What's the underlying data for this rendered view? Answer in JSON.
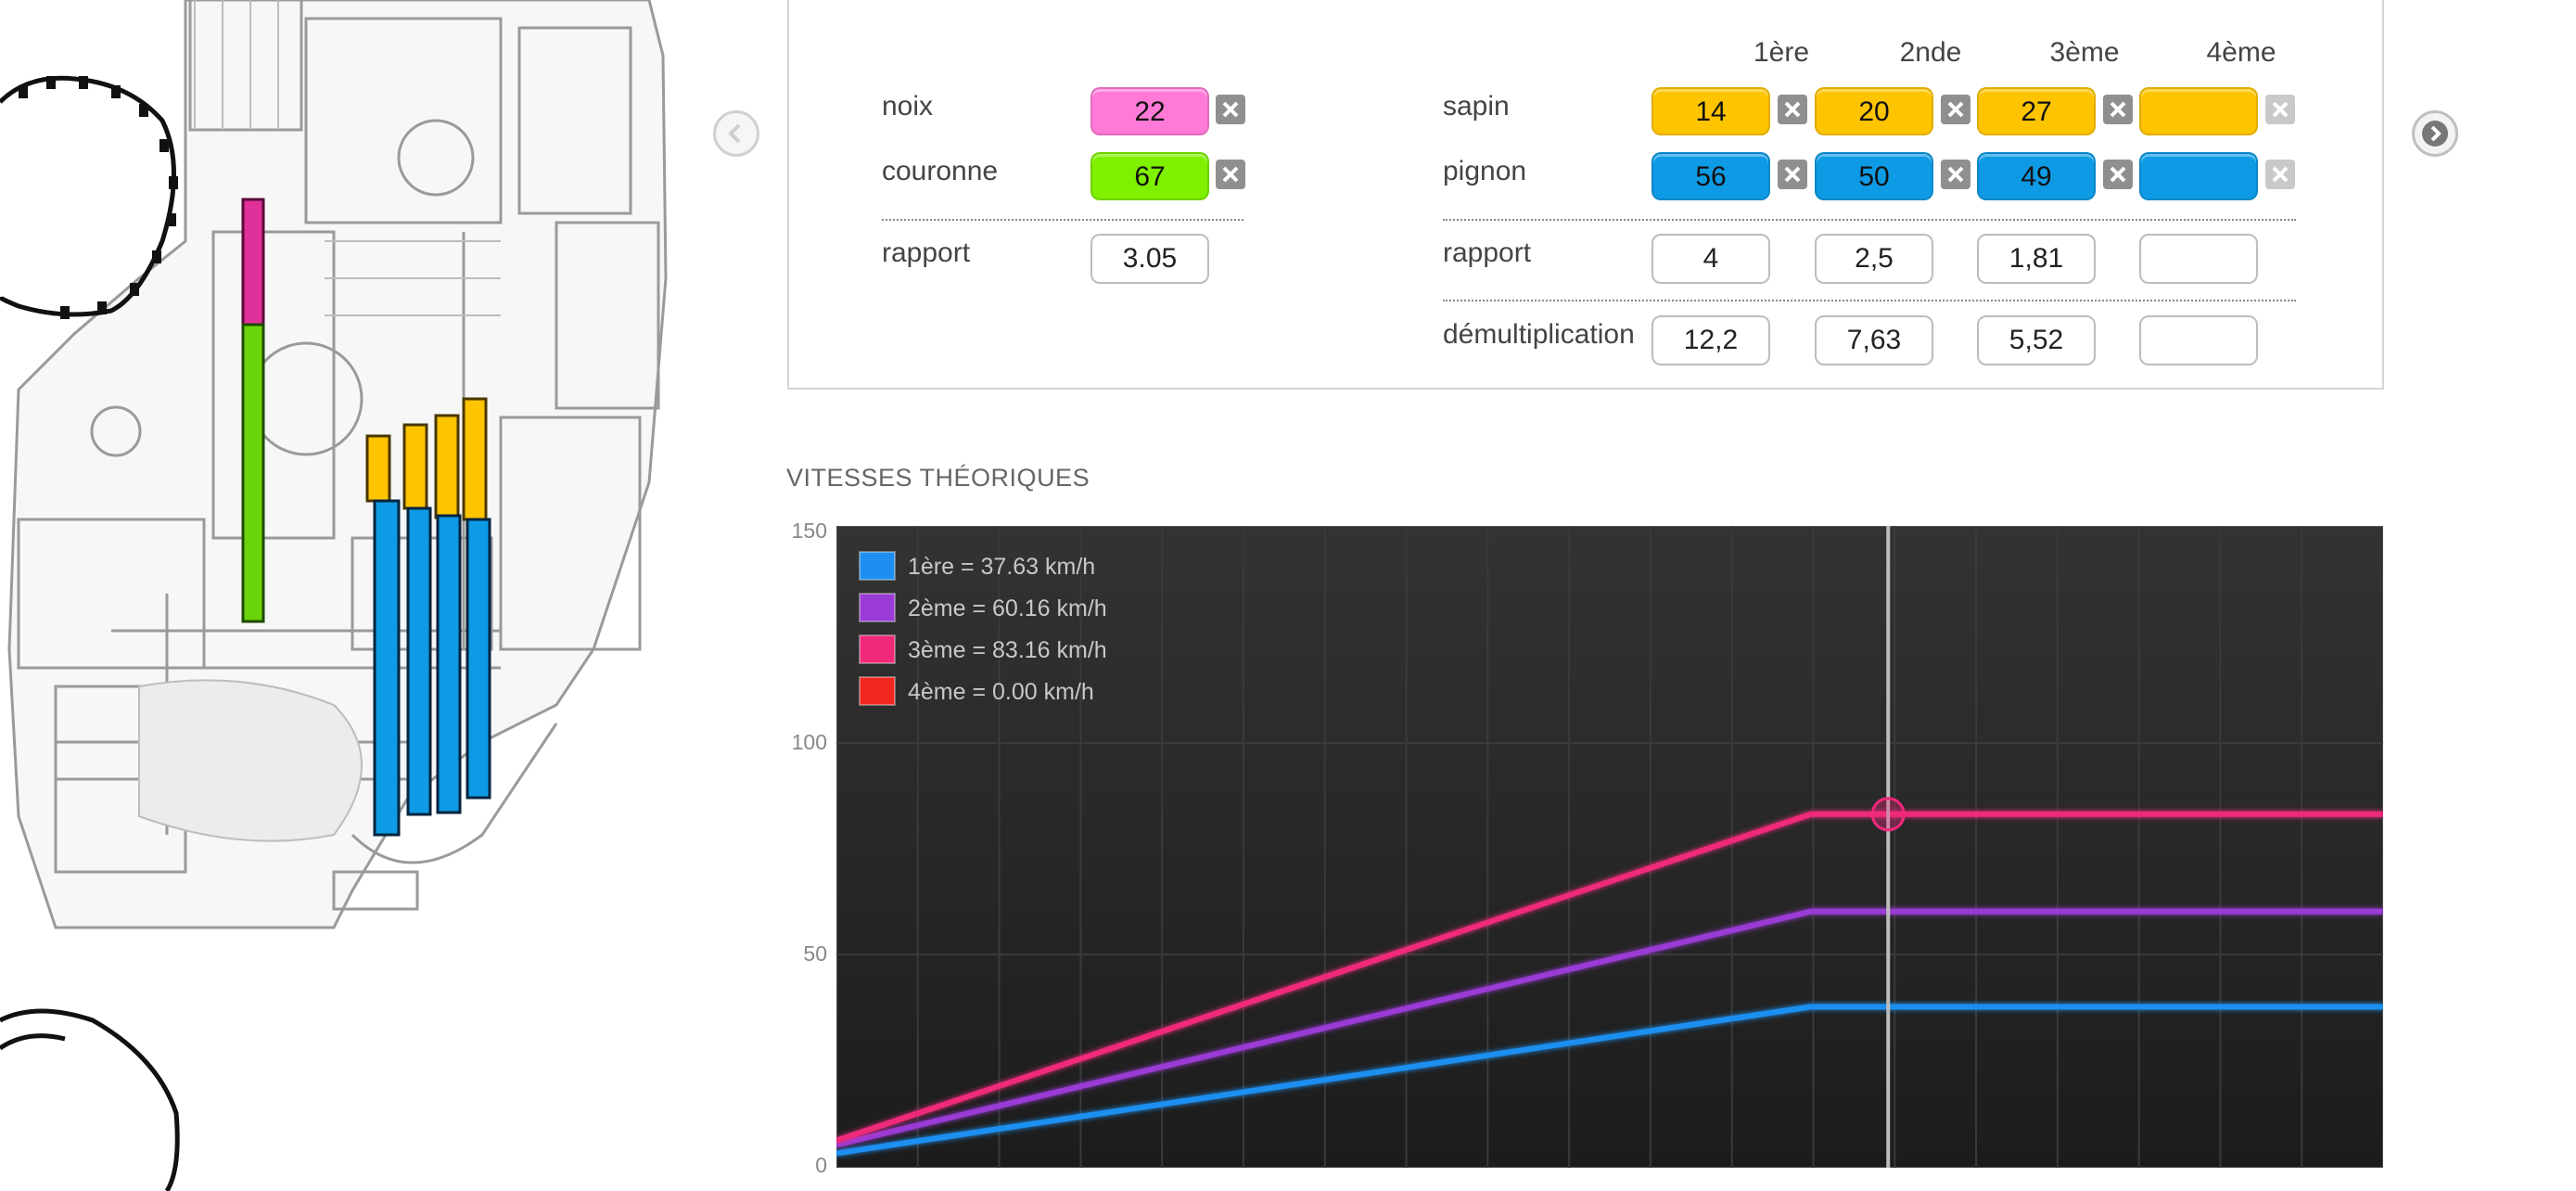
{
  "side_panel": {
    "gear_colors": {
      "noix": "#ff7ad6",
      "couronne": "#7ff000",
      "sapin": "#ffc400",
      "pignon": "#0e9ae4"
    }
  },
  "navigation": {
    "prev_icon": "chevron-left-icon",
    "next_icon": "chevron-right-icon"
  },
  "primary": {
    "noix_label": "noix",
    "noix_value": "22",
    "couronne_label": "couronne",
    "couronne_value": "67",
    "rapport_label": "rapport",
    "rapport_value": "3.05"
  },
  "gearbox": {
    "columns": [
      "1ère",
      "2nde",
      "3ème",
      "4ème"
    ],
    "sapin_label": "sapin",
    "sapin": [
      "14",
      "20",
      "27",
      ""
    ],
    "pignon_label": "pignon",
    "pignon": [
      "56",
      "50",
      "49",
      ""
    ],
    "rapport_label": "rapport",
    "rapport": [
      "4",
      "2,5",
      "1,81",
      ""
    ],
    "demultiplication_label": "démultiplication",
    "demultiplication": [
      "12,2",
      "7,63",
      "5,52",
      ""
    ]
  },
  "chart_title": "VITESSES THÉORIQUES",
  "chart_data": {
    "type": "line",
    "title": "VITESSES THÉORIQUES",
    "xlabel": "",
    "ylabel": "",
    "ylim": [
      0,
      150
    ],
    "yticks": [
      "150",
      "100",
      "50",
      "0"
    ],
    "x": [
      0,
      0.63,
      1
    ],
    "grid": true,
    "legend_position": "top-left",
    "series": [
      {
        "name": "1ère = 37.63 km/h",
        "color": "#1e8ff0",
        "values": [
          3,
          37.63,
          37.63
        ]
      },
      {
        "name": "2ème = 60.16 km/h",
        "color": "#9a3bd6",
        "values": [
          5,
          60.16,
          60.16
        ]
      },
      {
        "name": "3ème = 83.16 km/h",
        "color": "#f0297a",
        "values": [
          6,
          83.16,
          83.16
        ]
      },
      {
        "name": "4ème = 0.00 km/h",
        "color": "#f0261f",
        "values": [
          0,
          0,
          0
        ]
      }
    ],
    "cursor": {
      "x": 0.68,
      "marker_series": "3ème = 83.16 km/h"
    }
  }
}
